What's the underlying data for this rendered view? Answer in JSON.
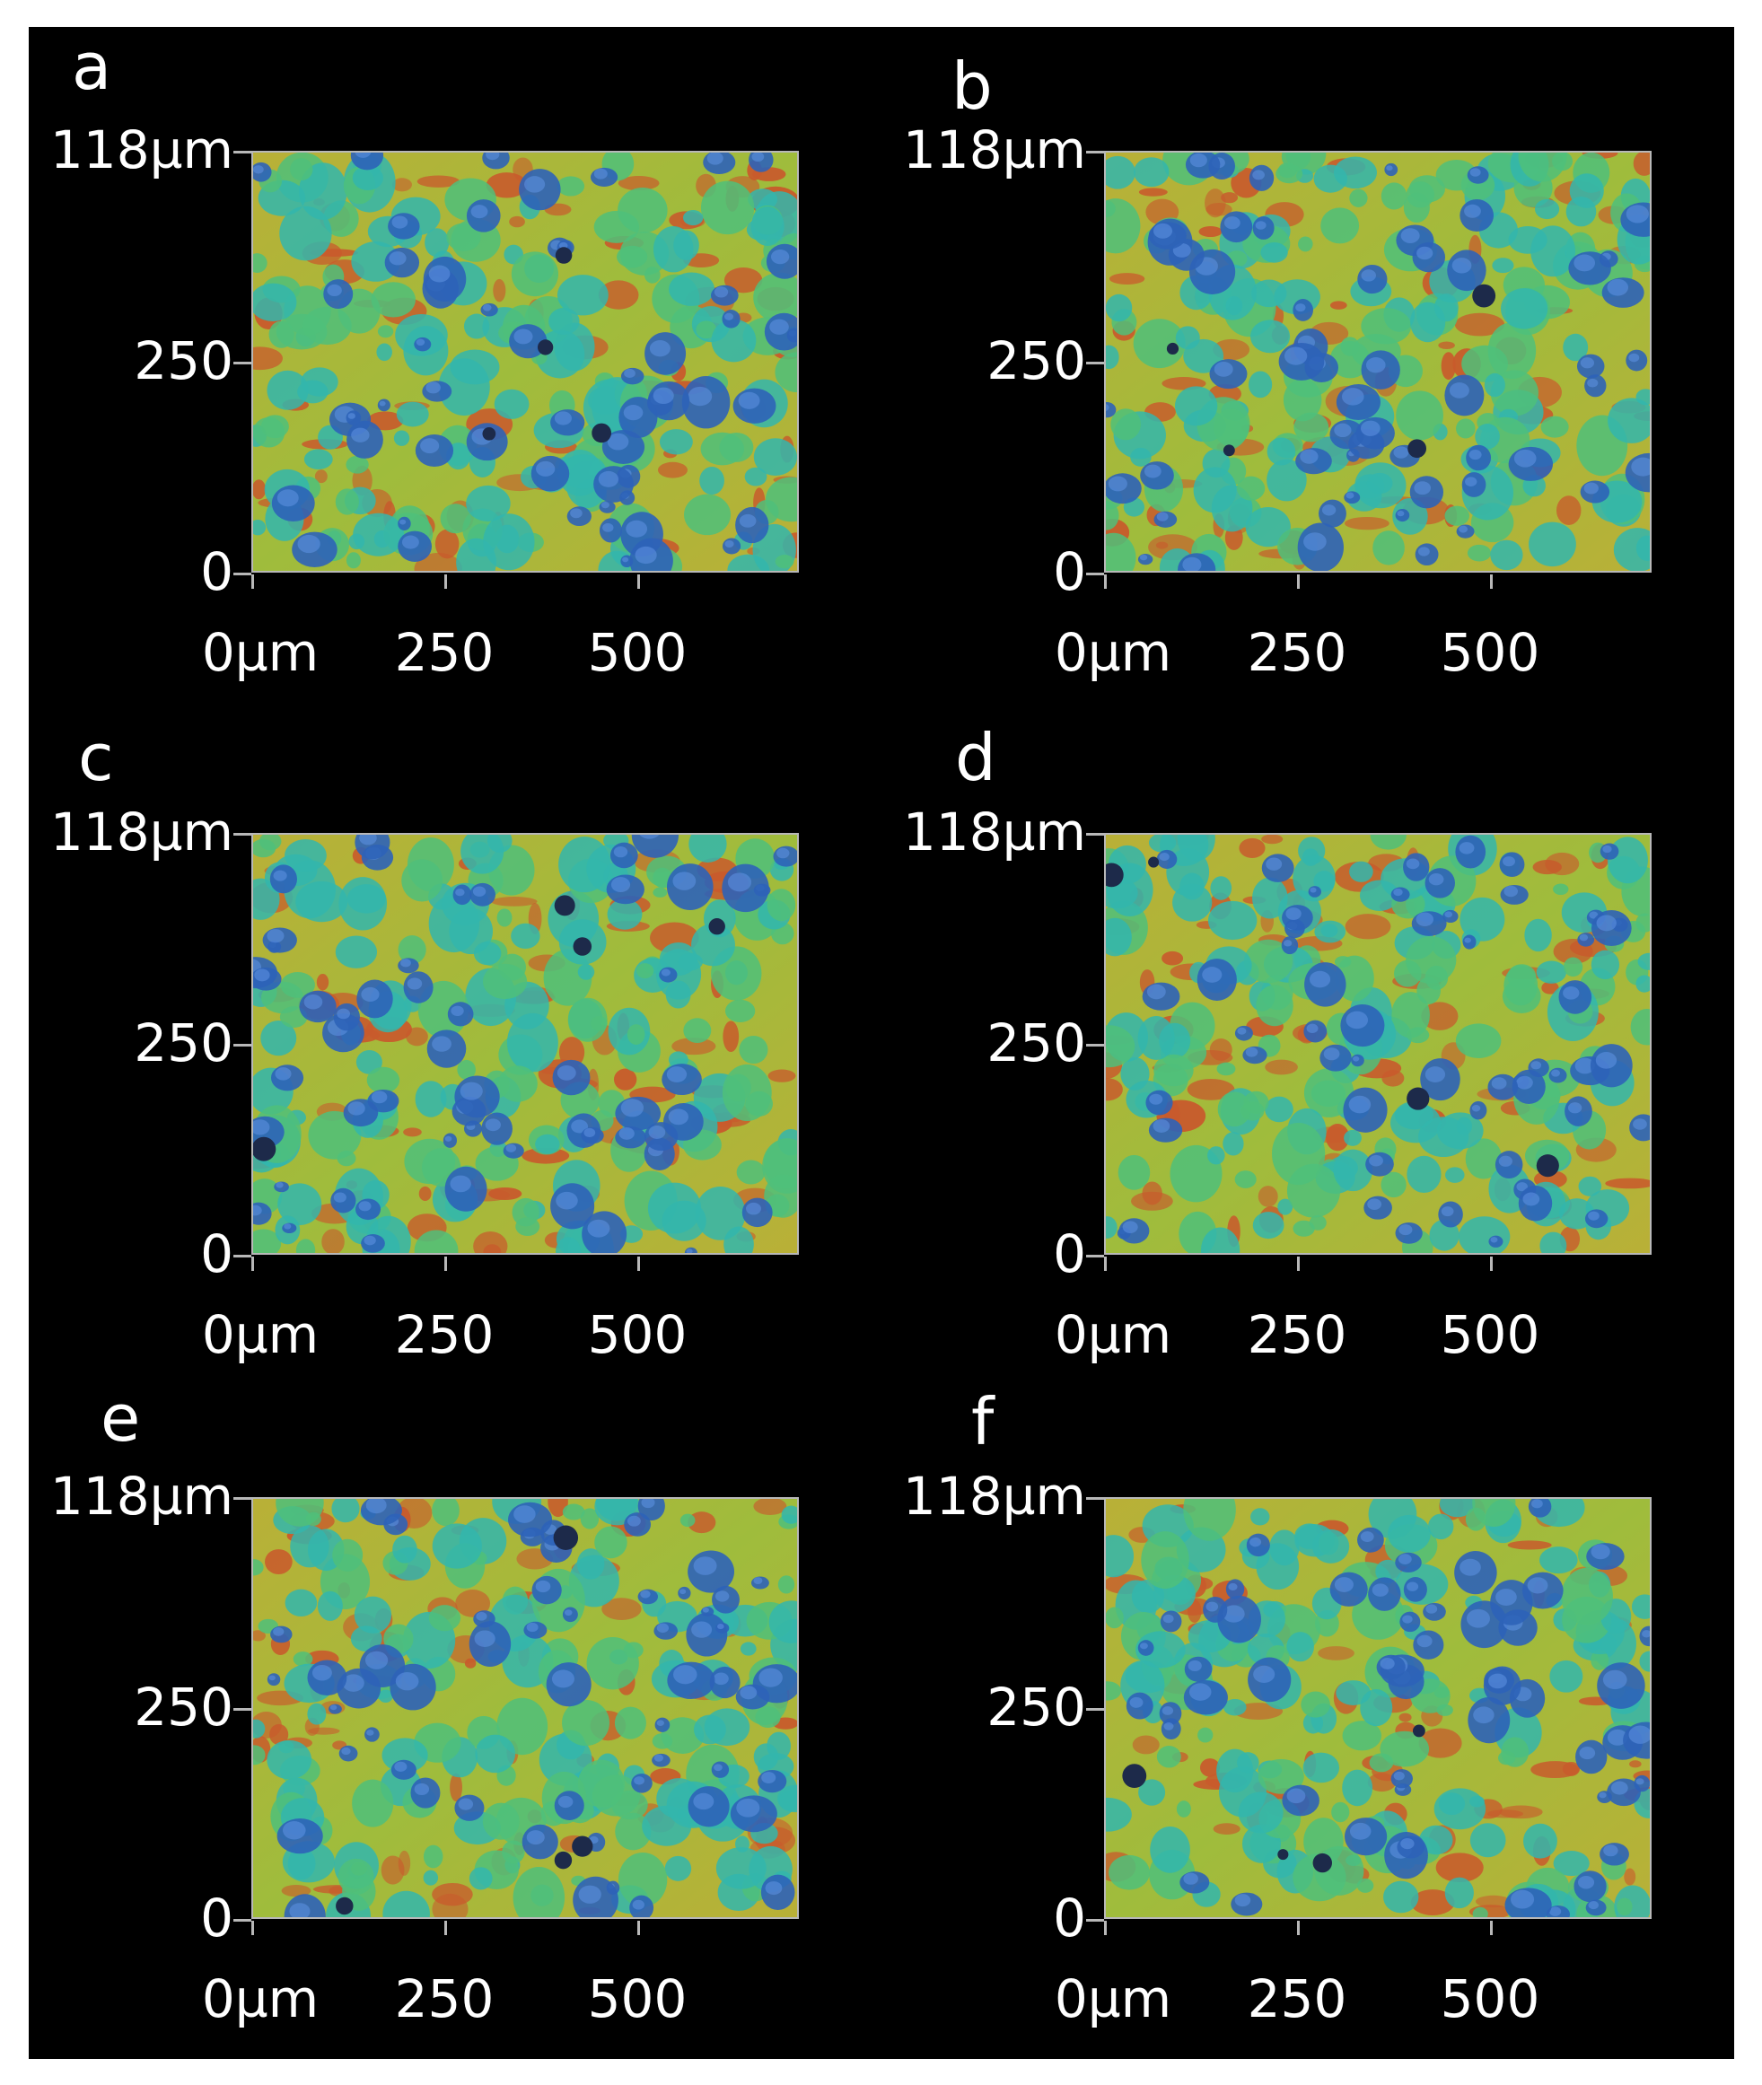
{
  "colors": {
    "background": "#000000",
    "surface_high": "#c85a2c",
    "surface_mid": "#b9b037",
    "surface_low": "#33b6ad",
    "surface_pit": "#2e63b8"
  },
  "axis": {
    "y_labels": [
      "118µm",
      "250",
      "0"
    ],
    "x_labels": [
      "0µm",
      "250",
      "500"
    ]
  },
  "panels": [
    {
      "letter": "a"
    },
    {
      "letter": "b"
    },
    {
      "letter": "c"
    },
    {
      "letter": "d"
    },
    {
      "letter": "e"
    },
    {
      "letter": "f"
    }
  ]
}
